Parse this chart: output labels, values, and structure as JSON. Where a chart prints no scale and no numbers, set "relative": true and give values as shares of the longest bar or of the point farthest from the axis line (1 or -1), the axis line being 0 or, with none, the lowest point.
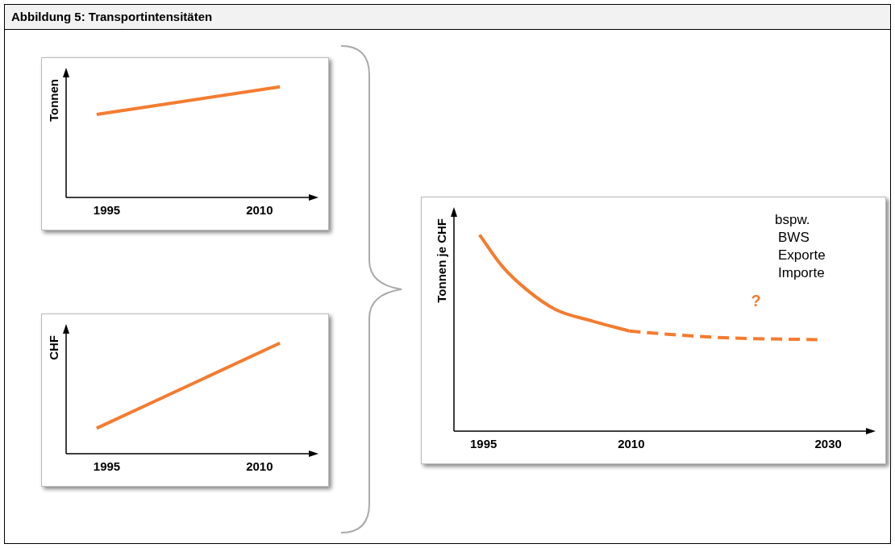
{
  "chart_data": [
    {
      "type": "line",
      "title": "Abbildung 5: Transportintensitäten",
      "ylabel": "Tonnen",
      "relative": true,
      "tick_labels": "x",
      "xlim": [
        1991,
        2015
      ],
      "xticks": [
        1995,
        2010
      ],
      "marker": "none",
      "line_style": "solid",
      "legend": false,
      "grid": false,
      "series": [
        {
          "color": "#f47c30",
          "x": [
            1994,
            2012
          ],
          "values": [
            0.75,
            1
          ]
        }
      ]
    },
    {
      "type": "line",
      "ylabel": "CHF",
      "relative": true,
      "tick_labels": "x",
      "xlim": [
        1991,
        2015
      ],
      "xticks": [
        1995,
        2010
      ],
      "marker": "none",
      "line_style": "solid",
      "legend": false,
      "grid": false,
      "series": [
        {
          "color": "#f47c30",
          "x": [
            1994,
            2012
          ],
          "values": [
            0.23,
            1
          ]
        }
      ]
    },
    {
      "type": "line",
      "ylabel": "Tonnen je CHF",
      "relative": true,
      "tick_labels": "x",
      "xlim": [
        1992,
        2034
      ],
      "xticks": [
        1995,
        2010,
        2030
      ],
      "marker": "none",
      "legend": false,
      "grid": false,
      "annotations": [
        "bspw.",
        "BWS",
        "Exporte",
        "Importe",
        "?"
      ],
      "series": [
        {
          "color": "#f47c30",
          "line_style": "solid",
          "x": [
            1994.6,
            1996.9,
            1999.4,
            2002.3,
            2006.1,
            2009.8
          ],
          "values": [
            1,
            0.84,
            0.72,
            0.62,
            0.56,
            0.51
          ]
        },
        {
          "color": "#f47c30",
          "line_style": "dashed",
          "x": [
            2009.8,
            2014.6,
            2019.9,
            2028.9
          ],
          "values": [
            0.51,
            0.49,
            0.475,
            0.466
          ]
        }
      ]
    }
  ]
}
